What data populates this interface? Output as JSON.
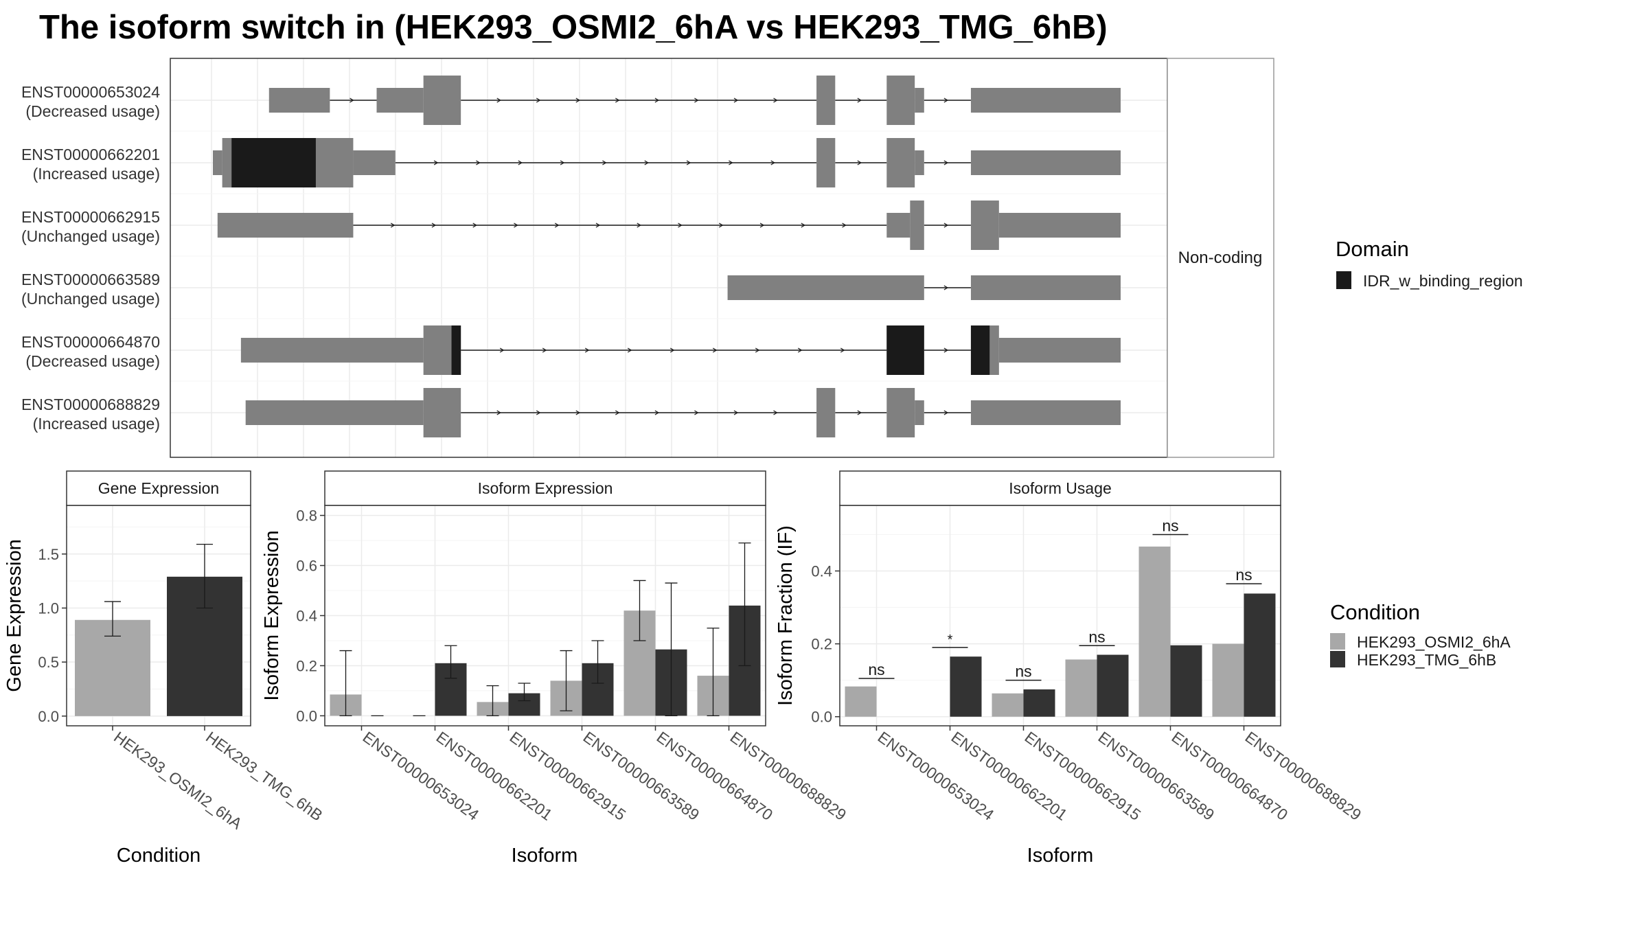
{
  "title": "The isoform switch in  (HEK293_OSMI2_6hA vs HEK293_TMG_6hB)",
  "colors": {
    "exon": "#808080",
    "domain": "#1a1a1a",
    "cond1": "#a8a8a8",
    "cond2": "#333333",
    "grid": "#ebebeb",
    "strip_bg": "#ffffff",
    "text": "#333333"
  },
  "chart_data": [
    {
      "type": "gene-structure",
      "strip_label": "Non-coding",
      "legend_title": "Domain",
      "legend_items": [
        "IDR_w_binding_region"
      ],
      "isoforms": [
        {
          "id": "ENST00000653024",
          "usage": "(Decreased usage)",
          "exons": [
            [
              0.12,
              0.25,
              "t"
            ],
            [
              0.35,
              0.45,
              "t"
            ],
            [
              0.45,
              0.53,
              "c"
            ],
            [
              1.29,
              1.33,
              "c"
            ],
            [
              1.44,
              1.5,
              "c"
            ],
            [
              1.5,
              1.52,
              "t"
            ],
            [
              1.62,
              1.94,
              "t"
            ]
          ],
          "domains": []
        },
        {
          "id": "ENST00000662201",
          "usage": "(Increased usage)",
          "exons": [
            [
              0.0,
              0.02,
              "t"
            ],
            [
              0.02,
              0.3,
              "c"
            ],
            [
              0.3,
              0.39,
              "t"
            ],
            [
              1.29,
              1.33,
              "c"
            ],
            [
              1.44,
              1.5,
              "c"
            ],
            [
              1.5,
              1.52,
              "t"
            ],
            [
              1.62,
              1.94,
              "t"
            ]
          ],
          "domains": [
            [
              0.04,
              0.22
            ]
          ]
        },
        {
          "id": "ENST00000662915",
          "usage": "(Unchanged usage)",
          "exons": [
            [
              0.01,
              0.3,
              "t"
            ],
            [
              1.44,
              1.49,
              "t"
            ],
            [
              1.49,
              1.52,
              "c"
            ],
            [
              1.62,
              1.68,
              "c"
            ],
            [
              1.68,
              1.94,
              "t"
            ]
          ],
          "domains": []
        },
        {
          "id": "ENST00000663589",
          "usage": "(Unchanged usage)",
          "exons": [
            [
              1.1,
              1.52,
              "t"
            ],
            [
              1.62,
              1.94,
              "t"
            ]
          ],
          "domains": []
        },
        {
          "id": "ENST00000664870",
          "usage": "(Decreased usage)",
          "exons": [
            [
              0.06,
              0.45,
              "t"
            ],
            [
              0.45,
              0.53,
              "c"
            ],
            [
              1.44,
              1.52,
              "c"
            ],
            [
              1.62,
              1.68,
              "c"
            ],
            [
              1.68,
              1.94,
              "t"
            ]
          ],
          "domains": [
            [
              0.51,
              0.53
            ],
            [
              1.44,
              1.52
            ],
            [
              1.62,
              1.66
            ]
          ]
        },
        {
          "id": "ENST00000688829",
          "usage": "(Increased usage)",
          "exons": [
            [
              0.07,
              0.45,
              "t"
            ],
            [
              0.45,
              0.53,
              "c"
            ],
            [
              1.29,
              1.33,
              "c"
            ],
            [
              1.44,
              1.5,
              "c"
            ],
            [
              1.5,
              1.52,
              "t"
            ],
            [
              1.62,
              1.94,
              "t"
            ]
          ],
          "domains": []
        }
      ]
    },
    {
      "type": "bar",
      "title": "Gene Expression",
      "xlabel": "Condition",
      "ylabel": "Gene Expression",
      "categories": [
        "HEK293_OSMI2_6hA",
        "HEK293_TMG_6hB"
      ],
      "values": [
        0.89,
        1.29
      ],
      "err_low": [
        0.74,
        1.0
      ],
      "err_high": [
        1.06,
        1.59
      ],
      "ylim": [
        -0.09,
        1.95
      ],
      "yticks": [
        0.0,
        0.5,
        1.0,
        1.5
      ],
      "ytick_labels": [
        "0.0",
        "0.5",
        "1.0",
        "1.5"
      ]
    },
    {
      "type": "bar",
      "title": "Isoform Expression",
      "xlabel": "Isoform",
      "ylabel": "Isoform Expression",
      "categories": [
        "ENST00000653024",
        "ENST00000662201",
        "ENST00000662915",
        "ENST00000663589",
        "ENST00000664870",
        "ENST00000688829"
      ],
      "series": [
        {
          "name": "HEK293_OSMI2_6hA",
          "values": [
            0.085,
            0.0,
            0.055,
            0.14,
            0.42,
            0.16
          ],
          "err_low": [
            0.0,
            0.0,
            0.0,
            0.02,
            0.3,
            0.0
          ],
          "err_high": [
            0.26,
            0.0,
            0.12,
            0.26,
            0.54,
            0.35
          ]
        },
        {
          "name": "HEK293_TMG_6hB",
          "values": [
            0.0,
            0.21,
            0.09,
            0.21,
            0.265,
            0.44
          ],
          "err_low": [
            0.0,
            0.15,
            0.06,
            0.13,
            0.0,
            0.2
          ],
          "err_high": [
            0.0,
            0.28,
            0.13,
            0.3,
            0.53,
            0.69
          ]
        }
      ],
      "ylim": [
        -0.04,
        0.84
      ],
      "yticks": [
        0.0,
        0.2,
        0.4,
        0.6,
        0.8
      ],
      "ytick_labels": [
        "0.0",
        "0.2",
        "0.4",
        "0.6",
        "0.8"
      ]
    },
    {
      "type": "bar",
      "title": "Isoform Usage",
      "xlabel": "Isoform",
      "ylabel": "Isoform Fraction (IF)",
      "categories": [
        "ENST00000653024",
        "ENST00000662201",
        "ENST00000662915",
        "ENST00000663589",
        "ENST00000664870",
        "ENST00000688829"
      ],
      "series": [
        {
          "name": "HEK293_OSMI2_6hA",
          "values": [
            0.083,
            0.0,
            0.064,
            0.157,
            0.467,
            0.2
          ]
        },
        {
          "name": "HEK293_TMG_6hB",
          "values": [
            0.0,
            0.165,
            0.075,
            0.17,
            0.196,
            0.338
          ]
        }
      ],
      "annotations": [
        "ns",
        "*",
        "ns",
        "ns",
        "ns",
        "ns"
      ],
      "annotation_y": [
        0.105,
        0.19,
        0.1,
        0.195,
        0.5,
        0.365
      ],
      "ylim": [
        -0.025,
        0.58
      ],
      "yticks": [
        0.0,
        0.2,
        0.4
      ],
      "ytick_labels": [
        "0.0",
        "0.2",
        "0.4"
      ]
    }
  ],
  "condition_legend": {
    "title": "Condition",
    "items": [
      "HEK293_OSMI2_6hA",
      "HEK293_TMG_6hB"
    ]
  }
}
